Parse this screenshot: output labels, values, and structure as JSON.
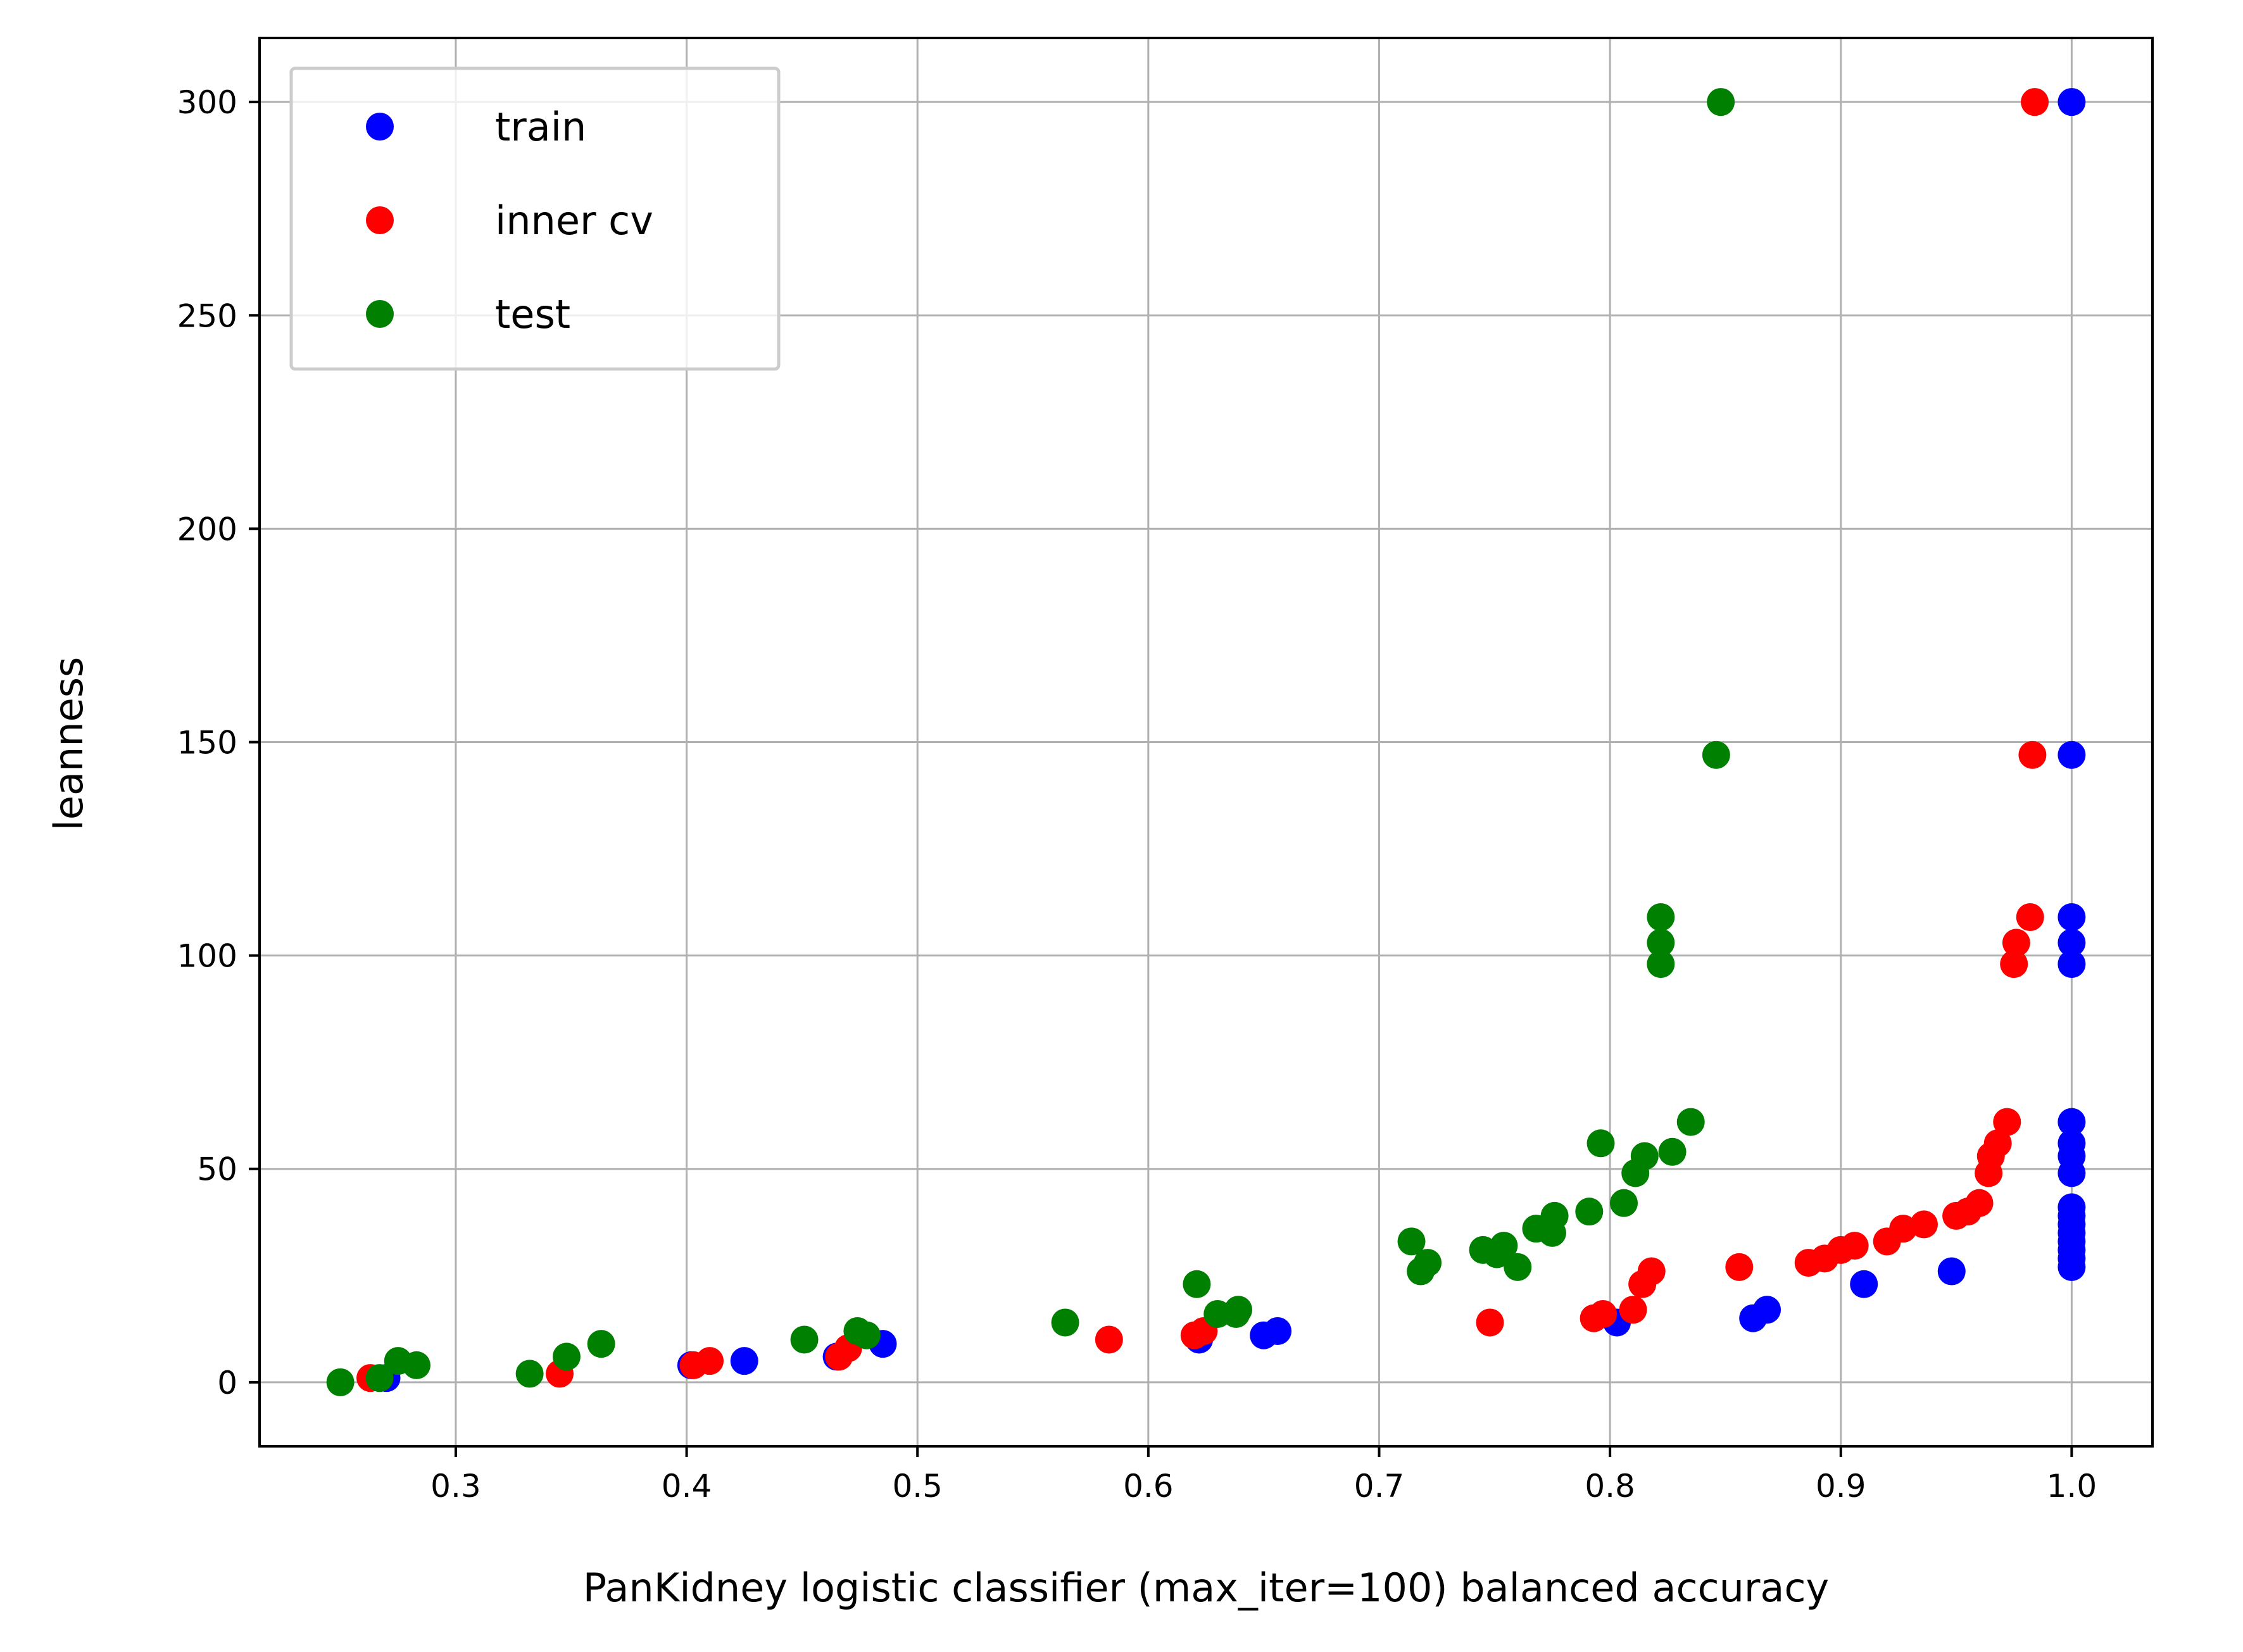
{
  "chart_data": {
    "type": "scatter",
    "title": "",
    "xlabel": "PanKidney logistic classifier (max_iter=100) balanced accuracy",
    "ylabel": "leanness",
    "xlim": [
      0.215,
      1.035
    ],
    "ylim": [
      -15,
      315
    ],
    "xticks": [
      0.3,
      0.4,
      0.5,
      0.6,
      0.7,
      0.8,
      0.9,
      1.0
    ],
    "xtick_labels": [
      "0.3",
      "0.4",
      "0.5",
      "0.6",
      "0.7",
      "0.8",
      "0.9",
      "1.0"
    ],
    "yticks": [
      0,
      50,
      100,
      150,
      200,
      250,
      300
    ],
    "ytick_labels": [
      "0",
      "50",
      "100",
      "150",
      "200",
      "250",
      "300"
    ],
    "grid": true,
    "legend_position": "upper-left",
    "series": [
      {
        "name": "train",
        "color": "#0000ff",
        "points": [
          [
            0.27,
            1
          ],
          [
            0.402,
            4
          ],
          [
            0.425,
            5
          ],
          [
            0.465,
            6
          ],
          [
            0.485,
            9
          ],
          [
            0.622,
            10
          ],
          [
            0.65,
            11
          ],
          [
            0.656,
            12
          ],
          [
            0.803,
            14
          ],
          [
            0.862,
            15
          ],
          [
            0.868,
            17
          ],
          [
            0.91,
            23
          ],
          [
            0.948,
            26
          ],
          [
            1.0,
            27
          ],
          [
            1.0,
            29
          ],
          [
            1.0,
            31
          ],
          [
            1.0,
            33
          ],
          [
            1.0,
            35
          ],
          [
            1.0,
            37
          ],
          [
            1.0,
            39
          ],
          [
            1.0,
            41
          ],
          [
            1.0,
            49
          ],
          [
            1.0,
            53
          ],
          [
            1.0,
            56
          ],
          [
            1.0,
            61
          ],
          [
            1.0,
            98
          ],
          [
            1.0,
            103
          ],
          [
            1.0,
            109
          ],
          [
            1.0,
            147
          ],
          [
            1.0,
            300
          ]
        ]
      },
      {
        "name": "inner cv",
        "color": "#ff0000",
        "points": [
          [
            0.263,
            1
          ],
          [
            0.345,
            2
          ],
          [
            0.403,
            4
          ],
          [
            0.41,
            5
          ],
          [
            0.466,
            6
          ],
          [
            0.47,
            8
          ],
          [
            0.583,
            10
          ],
          [
            0.62,
            11
          ],
          [
            0.624,
            12
          ],
          [
            0.748,
            14
          ],
          [
            0.793,
            15
          ],
          [
            0.797,
            16
          ],
          [
            0.81,
            17
          ],
          [
            0.814,
            23
          ],
          [
            0.818,
            26
          ],
          [
            0.856,
            27
          ],
          [
            0.886,
            28
          ],
          [
            0.893,
            29
          ],
          [
            0.9,
            31
          ],
          [
            0.906,
            32
          ],
          [
            0.92,
            33
          ],
          [
            0.927,
            36
          ],
          [
            0.936,
            37
          ],
          [
            0.95,
            39
          ],
          [
            0.955,
            40
          ],
          [
            0.96,
            42
          ],
          [
            0.964,
            49
          ],
          [
            0.965,
            53
          ],
          [
            0.968,
            56
          ],
          [
            0.972,
            61
          ],
          [
            0.975,
            98
          ],
          [
            0.976,
            103
          ],
          [
            0.982,
            109
          ],
          [
            0.983,
            147
          ],
          [
            0.984,
            300
          ]
        ]
      },
      {
        "name": "test",
        "color": "#008000",
        "points": [
          [
            0.25,
            0
          ],
          [
            0.267,
            1
          ],
          [
            0.275,
            5
          ],
          [
            0.283,
            4
          ],
          [
            0.332,
            2
          ],
          [
            0.348,
            6
          ],
          [
            0.363,
            9
          ],
          [
            0.451,
            10
          ],
          [
            0.474,
            12
          ],
          [
            0.478,
            11
          ],
          [
            0.564,
            14
          ],
          [
            0.621,
            23
          ],
          [
            0.63,
            16
          ],
          [
            0.638,
            16
          ],
          [
            0.639,
            17
          ],
          [
            0.714,
            33
          ],
          [
            0.718,
            26
          ],
          [
            0.721,
            28
          ],
          [
            0.745,
            31
          ],
          [
            0.751,
            30
          ],
          [
            0.754,
            32
          ],
          [
            0.76,
            27
          ],
          [
            0.768,
            36
          ],
          [
            0.775,
            35
          ],
          [
            0.776,
            39
          ],
          [
            0.791,
            40
          ],
          [
            0.796,
            56
          ],
          [
            0.806,
            42
          ],
          [
            0.811,
            49
          ],
          [
            0.815,
            53
          ],
          [
            0.827,
            54
          ],
          [
            0.835,
            61
          ],
          [
            0.822,
            98
          ],
          [
            0.822,
            103
          ],
          [
            0.822,
            109
          ],
          [
            0.846,
            147
          ],
          [
            0.848,
            300
          ]
        ]
      }
    ]
  }
}
